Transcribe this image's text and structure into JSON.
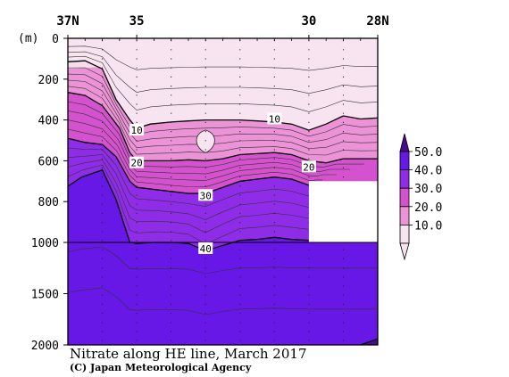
{
  "chart_data": {
    "type": "contour",
    "title": "Nitrate along HE line, March 2017",
    "credit": "(C) Japan Meteorological Agency",
    "x_axis": {
      "label_top": true,
      "ticks": [
        {
          "lat": 37,
          "label": "37N"
        },
        {
          "lat": 35,
          "label": "35"
        },
        {
          "lat": 30,
          "label": "30"
        },
        {
          "lat": 28,
          "label": "28N"
        }
      ],
      "range": [
        37,
        28
      ]
    },
    "y_axis": {
      "unit": "(m)",
      "inverted": true,
      "scale": "piecewise: linear 0-1000, compressed 1000-2000",
      "ticks": [
        0,
        200,
        400,
        600,
        800,
        1000,
        1500,
        2000
      ],
      "range": [
        0,
        2000
      ]
    },
    "colorbar": {
      "labels": [
        "50.0",
        "40.0",
        "30.0",
        "20.0",
        "10.0"
      ],
      "levels": [
        10,
        20,
        30,
        40,
        50
      ],
      "colors": {
        "lt10": "#f7e4f0",
        "10_20": "#ec92d6",
        "20_30": "#d552cf",
        "30_40": "#8f2ce8",
        "40_50": "#6818e6",
        "gt50": "#4a0c8e"
      }
    },
    "contour_labels": [
      {
        "text": "10",
        "lat": 35.0,
        "depth": 450
      },
      {
        "text": "10",
        "lat": 31.0,
        "depth": 395
      },
      {
        "text": "20",
        "lat": 35.0,
        "depth": 610
      },
      {
        "text": "20",
        "lat": 30.0,
        "depth": 630
      },
      {
        "text": "30",
        "lat": 33.0,
        "depth": 770
      },
      {
        "text": "40",
        "lat": 33.0,
        "depth": 1060
      }
    ],
    "isolines": {
      "c10": {
        "lat": [
          37,
          36.5,
          36.0,
          35.6,
          35.2,
          35.0,
          34.6,
          34.0,
          33.5,
          33.0,
          32.5,
          32.0,
          31.5,
          31.0,
          30.5,
          30.0,
          29.5,
          29.0,
          28.5,
          28.0
        ],
        "depth": [
          115,
          110,
          150,
          300,
          400,
          440,
          420,
          410,
          405,
          400,
          400,
          400,
          405,
          410,
          420,
          450,
          420,
          380,
          395,
          390
        ]
      },
      "c20": {
        "lat": [
          37,
          36.5,
          36.0,
          35.5,
          35.2,
          35.0,
          34.5,
          34.0,
          33.5,
          33.0,
          32.5,
          32.0,
          31.5,
          31.0,
          30.5,
          30.0,
          29.5,
          29.0,
          28.5,
          28.0
        ],
        "depth": [
          265,
          280,
          330,
          440,
          560,
          600,
          600,
          600,
          595,
          600,
          590,
          570,
          565,
          560,
          570,
          600,
          610,
          590,
          590,
          590
        ]
      },
      "c30": {
        "lat": [
          37,
          36.5,
          36.0,
          35.6,
          35.2,
          35.0,
          34.5,
          34.0,
          33.5,
          33.0,
          32.5,
          32.0,
          31.5,
          31.0,
          30.5,
          30.0
        ],
        "depth": [
          490,
          510,
          520,
          580,
          700,
          730,
          740,
          750,
          760,
          760,
          730,
          700,
          690,
          680,
          690,
          720
        ]
      },
      "c40": {
        "lat": [
          37,
          36.6,
          36.0,
          35.6,
          35.2,
          35.0,
          34.5,
          34.0,
          33.5,
          33.0,
          32.5,
          32.0,
          31.5,
          31.0,
          30.5,
          30.0,
          29.5,
          29.0,
          28.5,
          28.0
        ],
        "depth": [
          725,
          680,
          645,
          790,
          1000,
          1010,
          1000,
          1000,
          1010,
          1080,
          1030,
          990,
          985,
          975,
          985,
          990,
          990,
          990,
          990,
          990
        ]
      },
      "c50": {
        "lat": [
          28.5,
          28.0
        ],
        "depth": [
          2000,
          1940
        ]
      }
    },
    "no_data_region": {
      "lat_from": 30.0,
      "lat_to": 28.0,
      "depth_from": 700,
      "depth_to": 1000
    }
  }
}
